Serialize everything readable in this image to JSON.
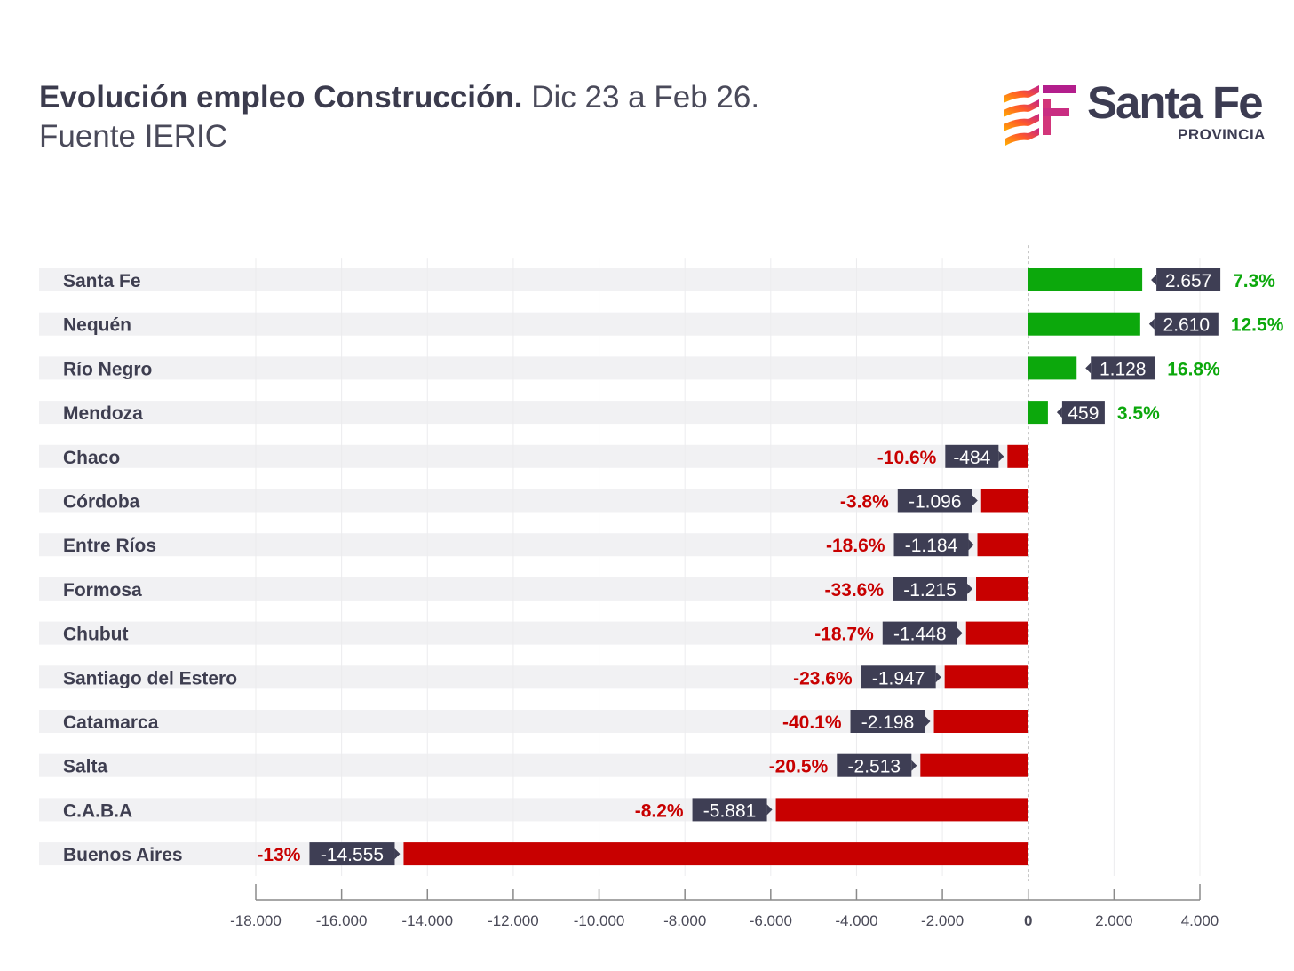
{
  "header": {
    "title_bold": "Evolución empleo Construcción.",
    "title_rest": " Dic 23 a Feb 26.",
    "source": "Fuente IERIC"
  },
  "logo": {
    "name": "Santa Fe",
    "sub": "PROVINCIA",
    "icon": "santa-fe-flag-logo"
  },
  "colors": {
    "positive": "#0ca80c",
    "negative": "#c80000",
    "tag_bg": "#3e3e54",
    "row_bg": "#f1f1f3",
    "axis": "#8a8a8a"
  },
  "chart_data": {
    "type": "bar",
    "orientation": "horizontal",
    "categories": [
      "Santa Fe",
      "Nequén",
      "Río Negro",
      "Mendoza",
      "Chaco",
      "Córdoba",
      "Entre Ríos",
      "Formosa",
      "Chubut",
      "Santiago del Estero",
      "Catamarca",
      "Salta",
      "C.A.B.A",
      "Buenos Aires"
    ],
    "values": [
      2657,
      2610,
      1128,
      459,
      -484,
      -1096,
      -1184,
      -1215,
      -1448,
      -1947,
      -2198,
      -2513,
      -5881,
      -14555
    ],
    "value_labels": [
      "2.657",
      "2.610",
      "1.128",
      "459",
      "-484",
      "-1.096",
      "-1.184",
      "-1.215",
      "-1.448",
      "-1.947",
      "-2.198",
      "-2.513",
      "-5.881",
      "-14.555"
    ],
    "percent_labels": [
      "7.3%",
      "12.5%",
      "16.8%",
      "3.5%",
      "-10.6%",
      "-3.8%",
      "-18.6%",
      "-33.6%",
      "-18.7%",
      "-23.6%",
      "-40.1%",
      "-20.5%",
      "-8.2%",
      "-13%"
    ],
    "xlim": [
      -18000,
      4000
    ],
    "xticks": [
      -18000,
      -16000,
      -14000,
      -12000,
      -10000,
      -8000,
      -6000,
      -4000,
      -2000,
      0,
      2000,
      4000
    ],
    "xtick_labels": [
      "-18.000",
      "-16.000",
      "-14.000",
      "-12.000",
      "-10.000",
      "-8.000",
      "-6.000",
      "-4.000",
      "-2.000",
      "0",
      "2.000",
      "4.000"
    ],
    "grid": true
  }
}
